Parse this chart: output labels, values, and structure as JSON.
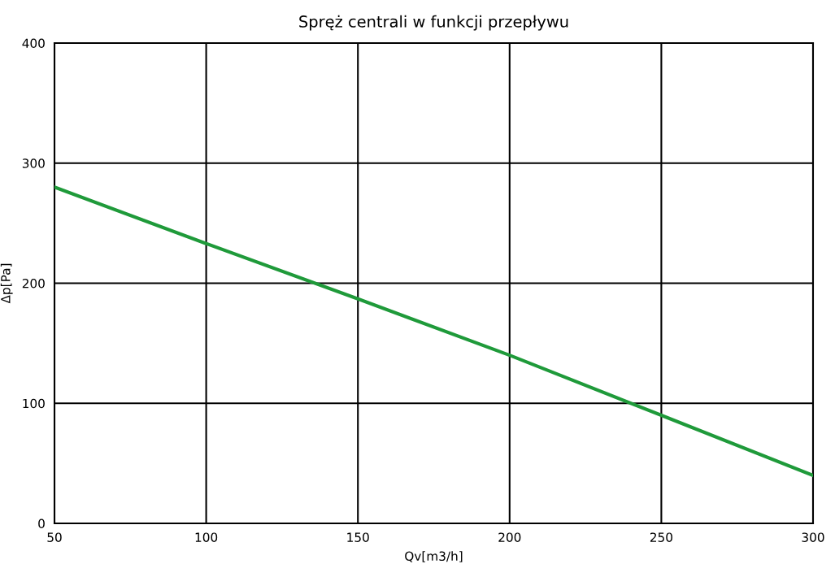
{
  "chart_data": {
    "type": "line",
    "title": "Spręż centrali w funkcji przepływu",
    "xlabel": "Qv[m3/h]",
    "ylabel": "Δp[Pa]",
    "x": [
      50,
      100,
      150,
      200,
      250,
      300
    ],
    "series": [
      {
        "color": "#1f9a3a",
        "values": [
          280,
          233,
          187,
          140,
          90,
          40
        ]
      }
    ],
    "xlim": [
      50,
      300
    ],
    "xticks": [
      50,
      100,
      150,
      200,
      250,
      300
    ],
    "ylim": [
      0,
      400
    ],
    "yticks": [
      0,
      100,
      200,
      300,
      400
    ],
    "grid": true,
    "legend": false,
    "marker": "none",
    "line_style": "solid"
  }
}
